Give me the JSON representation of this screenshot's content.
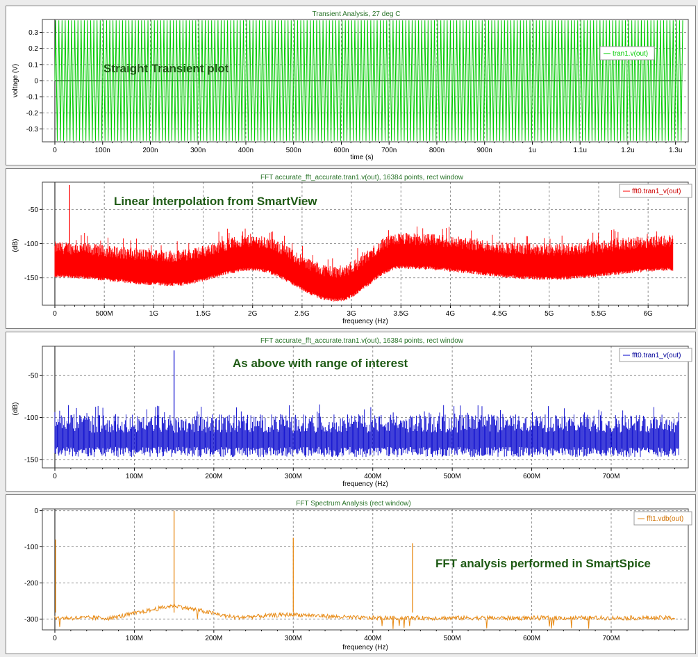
{
  "chart_data": [
    {
      "type": "line",
      "title": "Transient Analysis, 27 deg C",
      "xlabel": "time (s)",
      "ylabel": "voltage (V)",
      "x_ticks": [
        "0",
        "100n",
        "200n",
        "300n",
        "400n",
        "500n",
        "600n",
        "700n",
        "800n",
        "900n",
        "1u",
        "1.1u",
        "1.2u",
        "1.3u"
      ],
      "y_ticks": [
        "0.3",
        "0.2",
        "0.1",
        "0",
        "-0.1",
        "-0.2",
        "-0.3"
      ],
      "xlim": [
        0,
        1.315e-06
      ],
      "ylim": [
        -0.38,
        0.38
      ],
      "series": [
        {
          "name": "tran1.v(out)",
          "color": "#00cc00",
          "amplitude": 0.375,
          "frequency_hz": 150000000.0
        }
      ],
      "annotation": "Straight Transient plot",
      "legend_position": "top-right",
      "grid": true
    },
    {
      "type": "line",
      "title": "FFT accurate_fft_accurate.tran1.v(out), 16384 points, rect window",
      "xlabel": "frequency (Hz)",
      "ylabel": "(dB)",
      "x_ticks": [
        "0",
        "500M",
        "1G",
        "1.5G",
        "2G",
        "2.5G",
        "3G",
        "3.5G",
        "4G",
        "4.5G",
        "5G",
        "5.5G",
        "6G"
      ],
      "y_ticks": [
        "-50",
        "-100",
        "-150"
      ],
      "xlim": [
        0,
        6350000000.0
      ],
      "ylim": [
        -190,
        -10
      ],
      "series": [
        {
          "name": "fft0.tran1_v(out)",
          "color": "#ff0000",
          "peak_frequency_hz": 150000000.0,
          "peak_db": -14,
          "floor_db": [
            [
              0,
              -145
            ],
            [
              1200000000.0,
              -157
            ],
            [
              2000000000.0,
              -135
            ],
            [
              2850000000.0,
              -180
            ],
            [
              3500000000.0,
              -132
            ],
            [
              5000000000.0,
              -148
            ],
            [
              6250000000.0,
              -135
            ]
          ]
        }
      ],
      "annotation": "Linear Interpolation from SmartView",
      "legend_position": "top-right",
      "grid": true
    },
    {
      "type": "line",
      "title": "FFT accurate_fft_accurate.tran1.v(out), 16384 points, rect window",
      "xlabel": "frequency (Hz)",
      "ylabel": "(dB)",
      "x_ticks": [
        "0",
        "100M",
        "200M",
        "300M",
        "400M",
        "500M",
        "600M",
        "700M"
      ],
      "y_ticks": [
        "-50",
        "-100",
        "-150"
      ],
      "xlim": [
        0,
        790000000.0
      ],
      "ylim": [
        -160,
        -15
      ],
      "series": [
        {
          "name": "fft0.tran1_v(out)",
          "color": "#0000cc",
          "peak_frequency_hz": 150000000.0,
          "peak_db": -20,
          "band_db": [
            -145,
            -100
          ]
        }
      ],
      "annotation": "As above with range of interest",
      "legend_position": "top-right",
      "grid": true
    },
    {
      "type": "line",
      "title": "FFT Spectrum Analysis (rect window)",
      "xlabel": "frequency (Hz)",
      "ylabel": "",
      "x_ticks": [
        "0",
        "100M",
        "200M",
        "300M",
        "400M",
        "500M",
        "600M",
        "700M"
      ],
      "y_ticks": [
        "0",
        "-100",
        "-200",
        "-300"
      ],
      "xlim": [
        0,
        790000000.0
      ],
      "ylim": [
        -330,
        5
      ],
      "series": [
        {
          "name": "fft1.vdb(out)",
          "color": "#e88a14",
          "peaks": [
            [
              0,
              -80
            ],
            [
              150000000.0,
              0
            ],
            [
              300000000.0,
              -75
            ],
            [
              450000000.0,
              -90
            ]
          ],
          "floor_db": -297
        }
      ],
      "annotation": "FFT analysis performed in SmartSpice",
      "legend_position": "top-right",
      "grid": true
    }
  ]
}
